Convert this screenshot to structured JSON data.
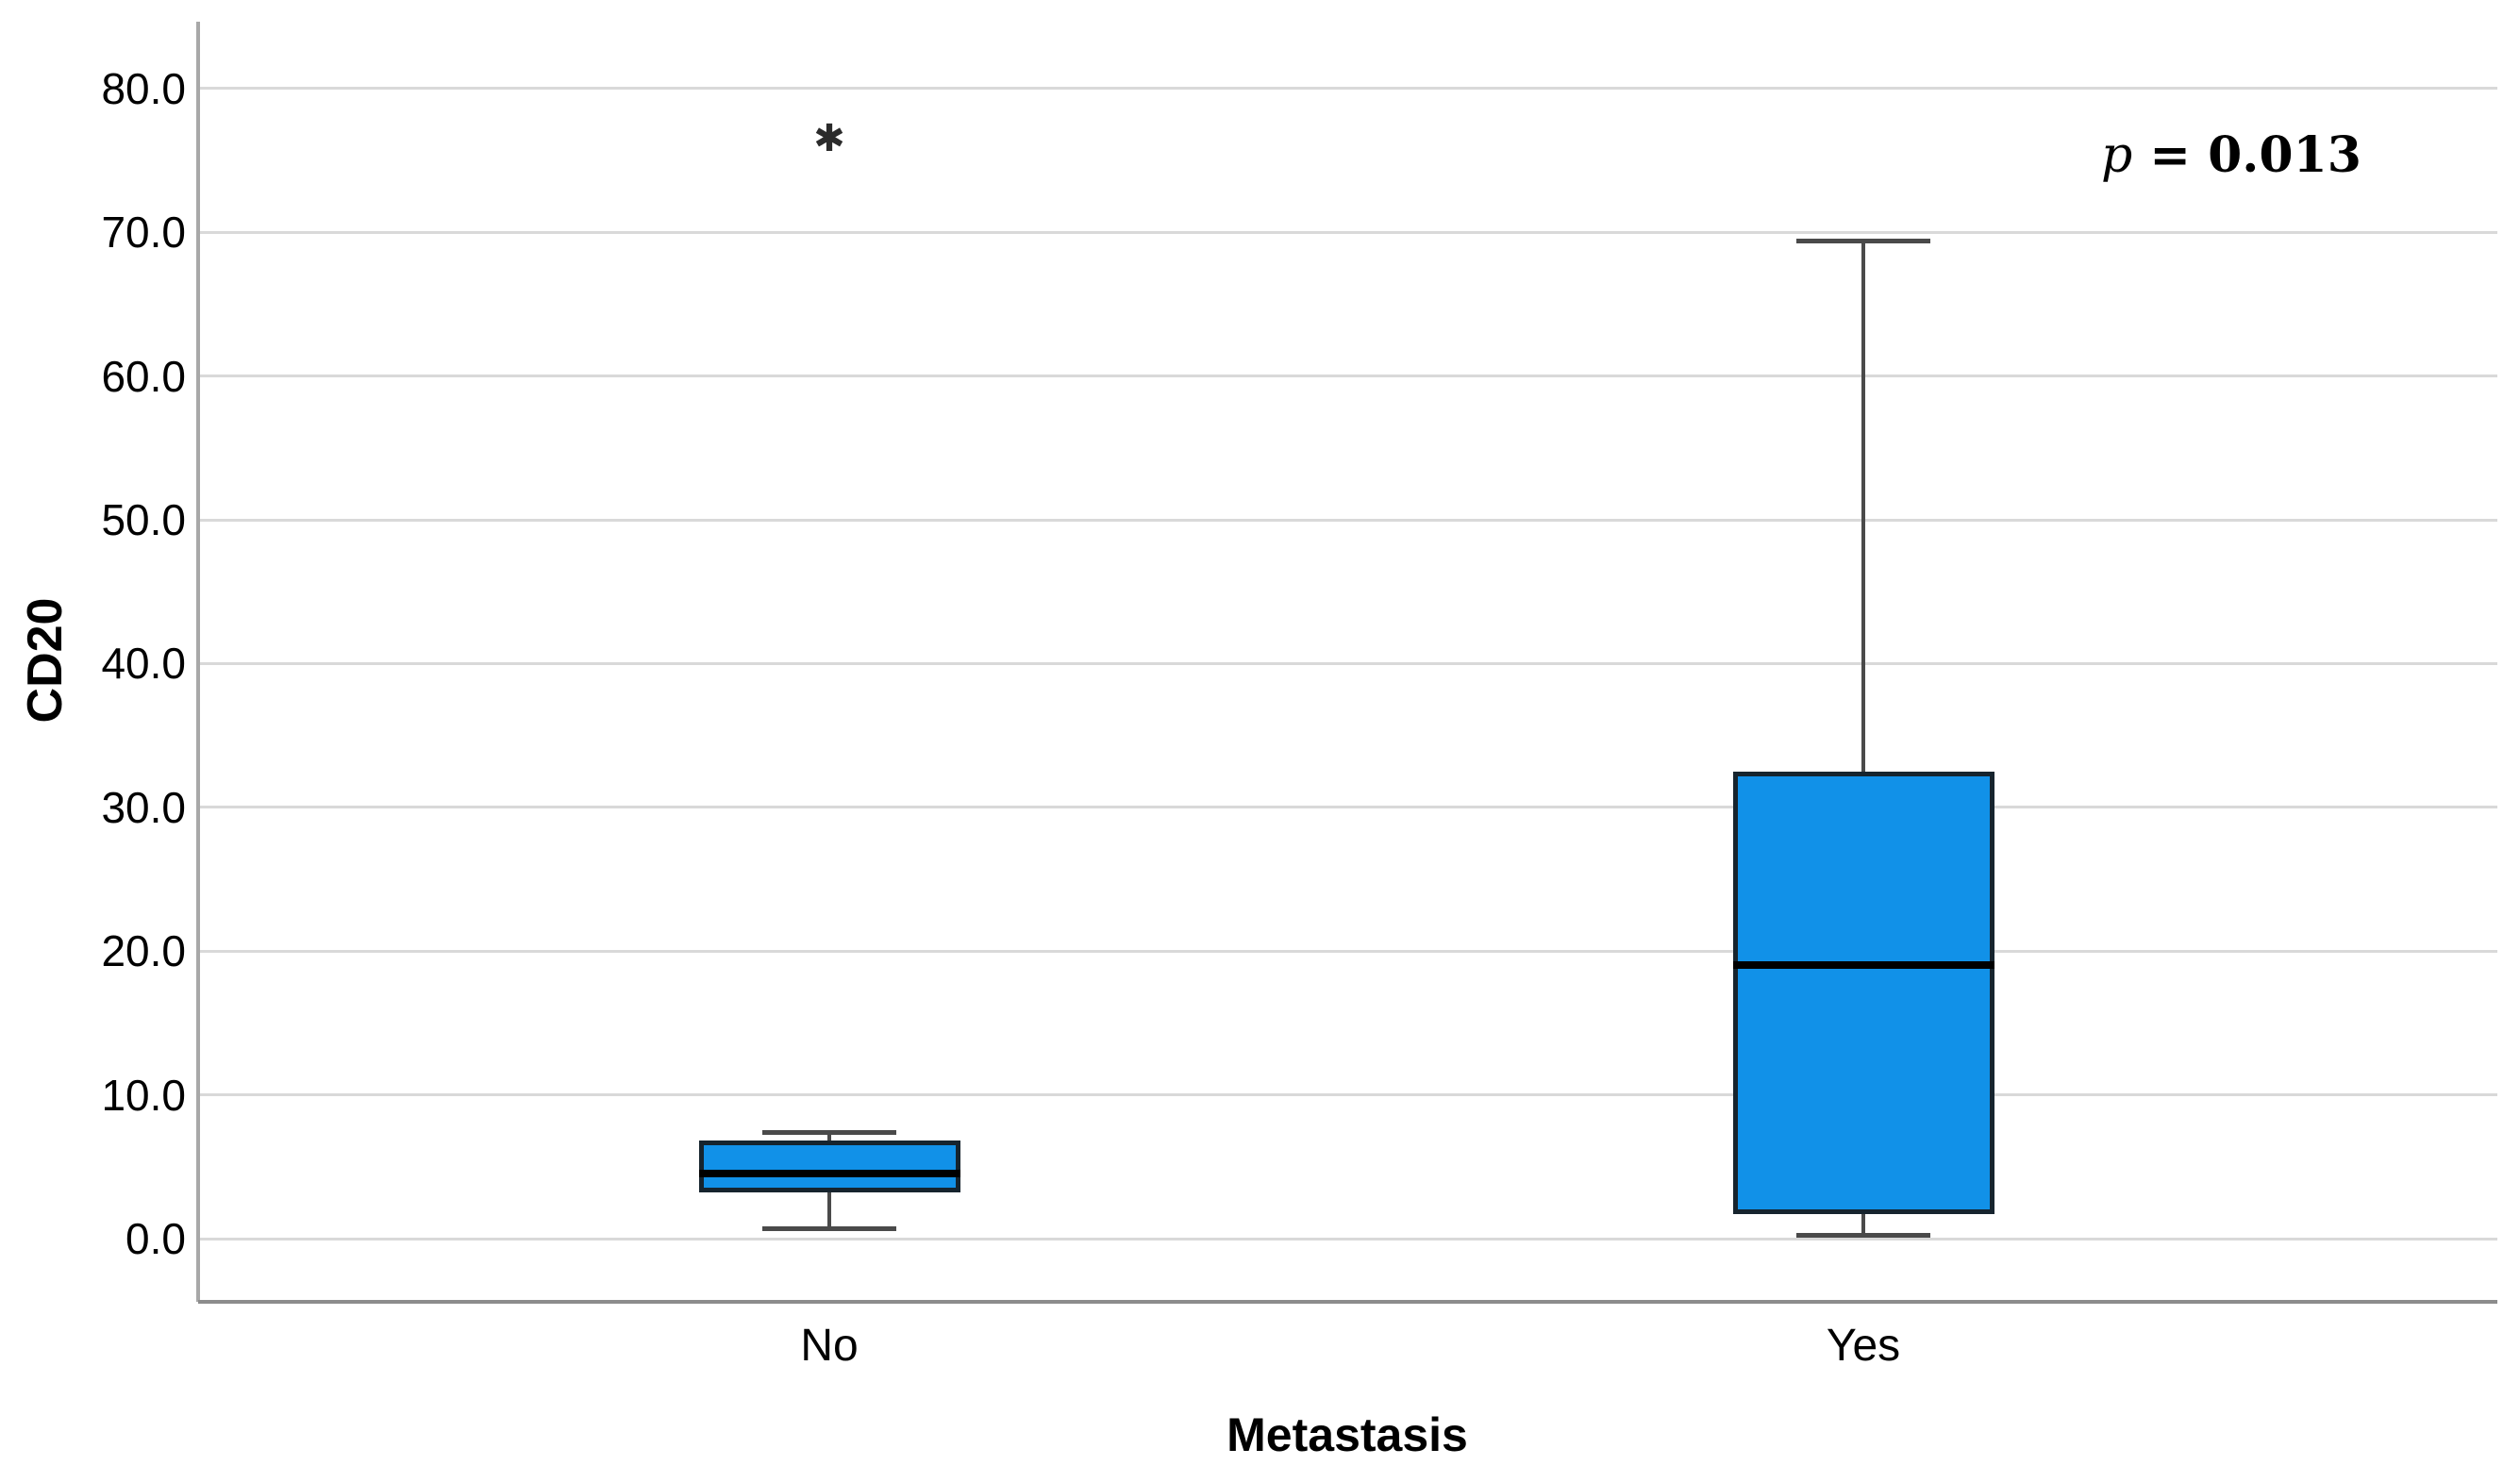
{
  "chart_data": {
    "type": "boxplot",
    "title": "",
    "xlabel": "Metastasis",
    "ylabel": "CD20",
    "categories": [
      "No",
      "Yes"
    ],
    "y_tick_labels": [
      "0.0",
      "10.0",
      "20.0",
      "30.0",
      "40.0",
      "50.0",
      "60.0",
      "70.0",
      "80.0"
    ],
    "y_tick_values": [
      0,
      10,
      20,
      30,
      40,
      50,
      60,
      70,
      80
    ],
    "ylim": [
      -4.4,
      84.7
    ],
    "grid": "horizontal-only",
    "legend": "none",
    "annotation": {
      "variable": "p",
      "equals_value": "= 0.013",
      "text": "p = 0.013"
    },
    "outlier_marker": "✱",
    "boxes": [
      {
        "category": "No",
        "whisker_low": 0.7,
        "q1": 3.2,
        "median": 4.5,
        "q3": 6.8,
        "whisker_high": 7.4,
        "outliers": [
          76.5
        ]
      },
      {
        "category": "Yes",
        "whisker_low": 0.2,
        "q1": 1.7,
        "median": 19.0,
        "q3": 32.5,
        "whisker_high": 69.4,
        "outliers": []
      }
    ],
    "colors": {
      "box_fill": "#1191E8",
      "box_border": "#16242E",
      "median_line": "#000000",
      "whisker": "#4A4A4A",
      "gridline": "#D9D9D9",
      "y_axis_line": "#A8A8A8",
      "x_axis_line": "#8C8C8C",
      "text": "#000000",
      "outlier": "#2B2B2B"
    }
  }
}
